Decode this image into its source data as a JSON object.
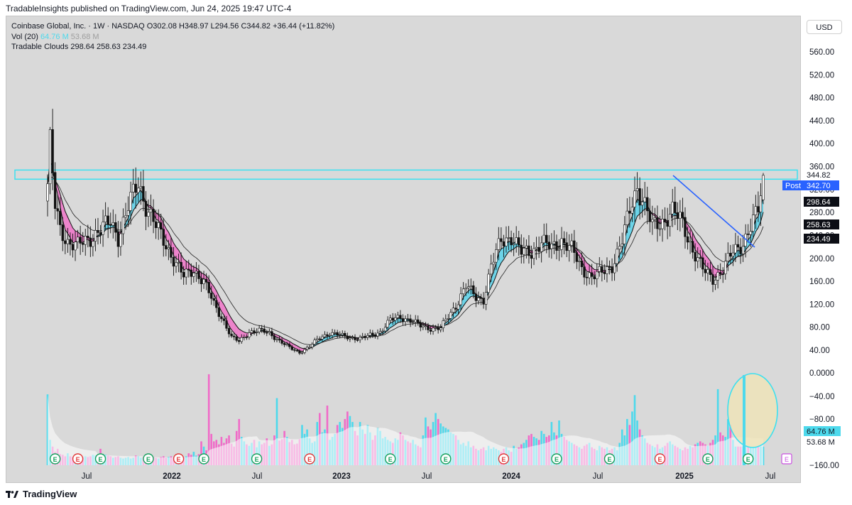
{
  "header": {
    "attribution": "TradableInsights published on TradingView.com, Jun 24, 2025 19:47 UTC-4"
  },
  "legend": {
    "ticker_line": "Coinbase Global, Inc. · 1W · NASDAQ  O302.08  H348.97  L294.56  C344.82  +36.44 (+11.82%)",
    "vol_label": "Vol (20)",
    "vol_value_1": "64.76 M",
    "vol_value_2": "53.68 M",
    "clouds_line": "Tradable Clouds  298.64  258.63  234.49"
  },
  "currency_button": "USD",
  "footer": {
    "brand": "TradingView"
  },
  "colors": {
    "bull": "#4dd9ec",
    "bear": "#f06bc8",
    "cloud_bull": "#5ed3ea",
    "cloud_bear": "#ee78c9",
    "zone": "#3ce0f0",
    "trendline": "#2962ff",
    "circle_fill": "#efe4b6"
  },
  "chart_data": {
    "type": "candlestick",
    "interval": "1W",
    "price_axis_ticks": [
      "560.00",
      "520.00",
      "480.00",
      "440.00",
      "400.00",
      "360.00",
      "320.00",
      "280.00",
      "240.00",
      "200.00",
      "160.00",
      "120.00",
      "80.00",
      "40.00"
    ],
    "volume_axis_ticks": [
      "0.0000",
      "−40.00",
      "−80.00",
      "−160.00"
    ],
    "time_axis_labels": [
      "Jul",
      "2022",
      "Jul",
      "2023",
      "Jul",
      "2024",
      "Jul",
      "2025",
      "Jul"
    ],
    "price_labels": [
      {
        "text": "344.82",
        "value": 344.82,
        "style": "white"
      },
      {
        "text": "342.70",
        "value": 342.7,
        "style": "blue",
        "prefix": "Post"
      },
      {
        "text": "298.64",
        "value": 298.64,
        "style": "black"
      },
      {
        "text": "258.63",
        "value": 258.63,
        "style": "black"
      },
      {
        "text": "234.49",
        "value": 234.49,
        "style": "black"
      }
    ],
    "volume_labels": [
      {
        "text": "64.76 M",
        "style": "cyan"
      },
      {
        "text": "53.68 M",
        "style": "white"
      }
    ],
    "ylim": [
      10,
      600
    ],
    "resistance_zone": [
      338,
      354
    ],
    "earnings_marker": "E",
    "anchors": [
      [
        0,
        330
      ],
      [
        1,
        400
      ],
      [
        3,
        290
      ],
      [
        5,
        250
      ],
      [
        8,
        230
      ],
      [
        12,
        222
      ],
      [
        16,
        232
      ],
      [
        20,
        248
      ],
      [
        25,
        262
      ],
      [
        28,
        238
      ],
      [
        32,
        290
      ],
      [
        36,
        330
      ],
      [
        38,
        305
      ],
      [
        42,
        265
      ],
      [
        46,
        230
      ],
      [
        50,
        200
      ],
      [
        54,
        168
      ],
      [
        58,
        180
      ],
      [
        62,
        160
      ],
      [
        66,
        120
      ],
      [
        70,
        90
      ],
      [
        73,
        62
      ],
      [
        76,
        55
      ],
      [
        80,
        72
      ],
      [
        84,
        74
      ],
      [
        88,
        70
      ],
      [
        92,
        56
      ],
      [
        96,
        44
      ],
      [
        100,
        36
      ],
      [
        104,
        46
      ],
      [
        108,
        62
      ],
      [
        112,
        70
      ],
      [
        116,
        66
      ],
      [
        120,
        62
      ],
      [
        124,
        60
      ],
      [
        128,
        66
      ],
      [
        132,
        72
      ],
      [
        136,
        92
      ],
      [
        140,
        98
      ],
      [
        144,
        92
      ],
      [
        148,
        82
      ],
      [
        152,
        78
      ],
      [
        156,
        78
      ],
      [
        158,
        92
      ],
      [
        162,
        118
      ],
      [
        166,
        152
      ],
      [
        170,
        132
      ],
      [
        173,
        128
      ],
      [
        176,
        185
      ],
      [
        180,
        232
      ],
      [
        184,
        238
      ],
      [
        188,
        210
      ],
      [
        192,
        212
      ],
      [
        196,
        228
      ],
      [
        200,
        218
      ],
      [
        204,
        232
      ],
      [
        208,
        215
      ],
      [
        212,
        182
      ],
      [
        216,
        168
      ],
      [
        220,
        175
      ],
      [
        224,
        188
      ],
      [
        228,
        230
      ],
      [
        232,
        300
      ],
      [
        234,
        325
      ],
      [
        236,
        305
      ],
      [
        240,
        255
      ],
      [
        244,
        265
      ],
      [
        248,
        282
      ],
      [
        252,
        262
      ],
      [
        256,
        215
      ],
      [
        260,
        180
      ],
      [
        264,
        165
      ],
      [
        268,
        180
      ],
      [
        272,
        212
      ],
      [
        276,
        228
      ],
      [
        280,
        262
      ],
      [
        282,
        285
      ],
      [
        284,
        344
      ]
    ],
    "volume_rel": [
      0.95,
      0.34,
      0.25,
      0.18,
      0.22,
      0.15,
      0.14,
      0.12,
      0.16,
      0.12,
      0.11,
      0.13,
      0.12,
      0.1,
      0.11,
      0.12,
      0.11,
      0.12,
      0.14,
      0.13,
      0.12,
      0.22,
      0.15,
      0.14,
      0.13,
      0.12,
      0.1,
      0.11,
      0.12,
      0.1,
      0.09,
      0.1,
      0.11,
      0.09,
      0.1,
      0.13,
      0.12,
      0.1,
      0.11,
      0.1,
      0.09,
      0.1,
      0.11,
      0.1,
      0.09,
      0.11,
      0.12,
      0.1,
      0.11,
      0.12,
      0.1,
      0.11,
      0.13,
      0.12,
      0.11,
      0.12,
      0.16,
      0.14,
      0.18,
      0.13,
      0.15,
      0.32,
      0.25,
      0.2,
      1.22,
      0.42,
      0.32,
      0.34,
      0.28,
      0.38,
      0.3,
      0.36,
      0.4,
      0.29,
      0.25,
      0.46,
      0.62,
      0.38,
      0.32,
      0.28,
      0.26,
      0.3,
      0.34,
      0.24,
      0.32,
      0.28,
      0.3,
      0.36,
      0.26,
      0.28,
      0.4,
      0.9,
      0.33,
      0.35,
      0.46,
      0.38,
      0.31,
      0.34,
      0.28,
      0.29,
      0.35,
      0.54,
      0.42,
      0.48,
      0.36,
      0.3,
      0.32,
      0.58,
      0.7,
      0.44,
      0.48,
      0.8,
      0.34,
      0.38,
      0.42,
      0.54,
      0.58,
      0.5,
      0.62,
      0.72,
      0.66,
      0.58,
      0.46,
      0.4,
      0.58,
      0.48,
      0.42,
      0.54,
      0.44,
      0.34,
      0.4,
      0.5,
      0.46,
      0.36,
      0.38,
      0.34,
      0.32,
      0.3,
      0.36,
      0.34,
      0.44,
      0.4,
      0.34,
      0.32,
      0.3,
      0.34,
      0.28,
      0.26,
      0.24,
      0.4,
      0.64,
      0.52,
      0.48,
      0.58,
      0.7,
      0.62,
      0.56,
      0.52,
      0.5,
      0.48,
      0.44,
      0.42,
      0.4,
      0.34,
      0.28,
      0.3,
      0.26,
      0.32,
      0.24,
      0.26,
      0.22,
      0.2,
      0.22,
      0.24,
      0.2,
      0.26,
      0.22,
      0.24,
      0.22,
      0.2,
      0.18,
      0.22,
      0.24,
      0.2,
      0.18,
      0.26,
      0.22,
      0.24,
      0.28,
      0.3,
      0.34,
      0.4,
      0.42,
      0.38,
      0.36,
      0.34,
      0.46,
      0.42,
      0.38,
      0.4,
      0.58,
      0.44,
      0.4,
      0.6,
      0.42,
      0.38,
      0.34,
      0.32,
      0.3,
      0.28,
      0.26,
      0.24,
      0.22,
      0.26,
      0.28,
      0.3,
      0.24,
      0.22,
      0.2,
      0.26,
      0.24,
      0.22,
      0.24,
      0.2,
      0.22,
      0.24,
      0.2,
      0.3,
      0.48,
      0.4,
      0.62,
      0.54,
      0.72,
      0.94,
      0.6,
      0.48,
      0.4,
      0.36,
      0.3,
      0.28,
      0.26,
      0.24,
      0.28,
      0.22,
      0.24,
      0.26,
      0.3,
      0.32,
      0.28,
      0.26,
      0.24,
      0.22,
      0.2,
      0.24,
      0.22,
      0.26,
      0.24,
      0.28,
      0.3,
      0.32,
      0.3,
      0.28,
      0.26,
      0.3,
      0.34,
      0.4,
      1.02,
      0.44,
      0.4,
      0.38,
      0.62,
      0.54,
      0.34
    ],
    "earnings_at": [
      3,
      12,
      21,
      40,
      52,
      62,
      83,
      104,
      136,
      158,
      181,
      202,
      223,
      243,
      262,
      278
    ]
  }
}
